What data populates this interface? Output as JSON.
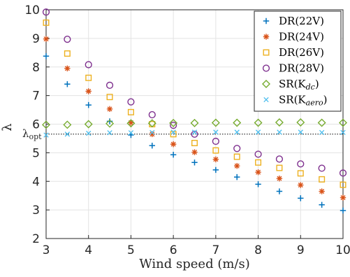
{
  "chart_data": {
    "type": "scatter",
    "title": "",
    "xlabel": "Wind speed (m/s)",
    "ylabel": "λ",
    "xlim": [
      3,
      10
    ],
    "ylim": [
      2,
      10
    ],
    "xticks": [
      "3",
      "4",
      "5",
      "6",
      "7",
      "8",
      "9",
      "10"
    ],
    "yticks": [
      "2",
      "3",
      "4",
      "5",
      "6",
      "7",
      "8",
      "9",
      "10"
    ],
    "grid": true,
    "legend_position": "top-right",
    "reference_line": {
      "label": "λ_opt",
      "display": "λopt",
      "y": 5.65
    },
    "x": [
      3,
      3.5,
      4,
      4.5,
      5,
      5.5,
      6,
      6.5,
      7,
      7.5,
      8,
      8.5,
      9,
      9.5,
      10
    ],
    "series": [
      {
        "name": "DR(22V)",
        "marker": "plus",
        "color": "#0072BD",
        "values": [
          8.38,
          7.4,
          6.67,
          6.1,
          5.62,
          5.25,
          4.93,
          4.66,
          4.4,
          4.15,
          3.9,
          3.65,
          3.41,
          3.18,
          2.98
        ]
      },
      {
        "name": "DR(24V)",
        "marker": "asterisk",
        "color": "#D95319",
        "values": [
          8.98,
          7.95,
          7.15,
          6.53,
          6.05,
          5.65,
          5.3,
          5.02,
          4.77,
          4.54,
          4.32,
          4.1,
          3.87,
          3.65,
          3.43
        ]
      },
      {
        "name": "DR(26V)",
        "marker": "square",
        "color": "#EDB120",
        "values": [
          9.55,
          8.47,
          7.62,
          6.95,
          6.42,
          6.0,
          5.65,
          5.34,
          5.08,
          4.86,
          4.66,
          4.47,
          4.28,
          4.07,
          3.88
        ]
      },
      {
        "name": "DR(28V)",
        "marker": "circle",
        "color": "#7E2F8E",
        "values": [
          9.92,
          8.97,
          8.08,
          7.36,
          6.78,
          6.33,
          5.96,
          5.65,
          5.4,
          5.15,
          4.95,
          4.78,
          4.61,
          4.46,
          4.29
        ]
      },
      {
        "name": "SR(K_dc)",
        "display": "SR(Kdc)",
        "marker": "diamond",
        "color": "#77AC30",
        "values": [
          5.98,
          5.98,
          6.0,
          6.02,
          6.03,
          6.03,
          6.04,
          6.04,
          6.05,
          6.05,
          6.05,
          6.06,
          6.06,
          6.05,
          6.05
        ]
      },
      {
        "name": "SR(K_aero)",
        "display": "SR(Kaero)",
        "marker": "x",
        "color": "#4DBEEE",
        "values": [
          5.62,
          5.65,
          5.68,
          5.7,
          5.7,
          5.71,
          5.72,
          5.72,
          5.72,
          5.72,
          5.72,
          5.72,
          5.72,
          5.71,
          5.71
        ]
      }
    ]
  },
  "legend": {
    "items": [
      {
        "prefix": "DR(22V)",
        "sub": "",
        "suffix": ""
      },
      {
        "prefix": "DR(24V)",
        "sub": "",
        "suffix": ""
      },
      {
        "prefix": "DR(26V)",
        "sub": "",
        "suffix": ""
      },
      {
        "prefix": "DR(28V)",
        "sub": "",
        "suffix": ""
      },
      {
        "prefix": "SR(K",
        "sub": "dc",
        "suffix": ")"
      },
      {
        "prefix": "SR(K",
        "sub": "aero",
        "suffix": ")"
      }
    ]
  }
}
